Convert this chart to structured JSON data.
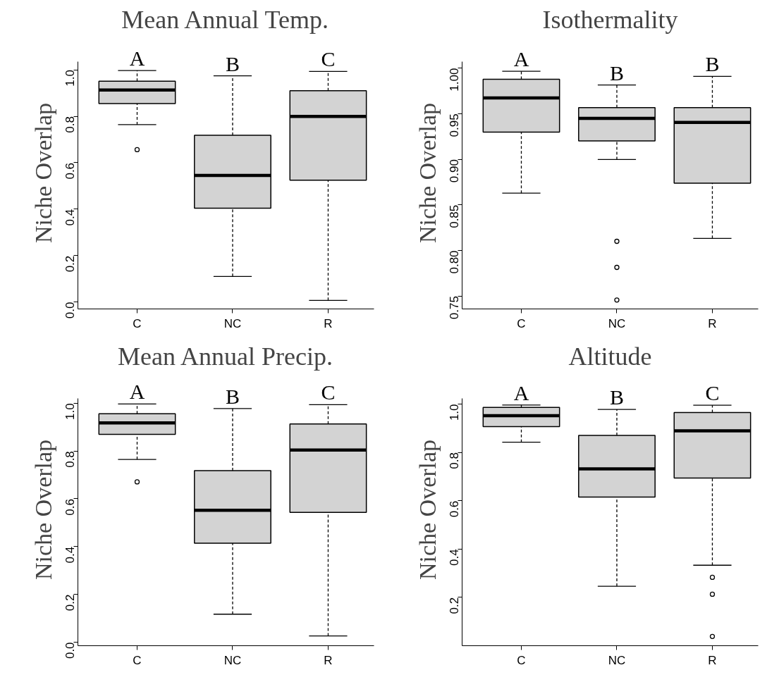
{
  "chart_data": [
    {
      "type": "box",
      "title": "Mean Annual Temp.",
      "ylabel": "Niche Overlap",
      "categories": [
        "C",
        "NC",
        "R"
      ],
      "color": "#d3d3d3",
      "ylim": [
        -0.03,
        1.035
      ],
      "yticks": [
        {
          "value": 0,
          "label": "0.0"
        },
        0.2,
        0.4,
        0.6,
        0.8,
        {
          "value": 1,
          "label": "1.0"
        }
      ],
      "grid": false,
      "boxes": [
        {
          "low": 0.764,
          "q1": 0.855,
          "median": 0.913,
          "q3": 0.951,
          "high": 0.997,
          "outliers": [
            0.656
          ]
        },
        {
          "low": 0.11,
          "q1": 0.404,
          "median": 0.545,
          "q3": 0.718,
          "high": 0.974
        },
        {
          "low": 0.007,
          "q1": 0.525,
          "median": 0.799,
          "q3": 0.91,
          "high": 0.993
        }
      ],
      "annotations": [
        {
          "text": "A",
          "x": "C",
          "y": 0.997
        },
        {
          "text": "B",
          "x": "NC",
          "y": 0.974
        },
        {
          "text": "C",
          "x": "R",
          "y": 0.993
        }
      ]
    },
    {
      "type": "box",
      "title": "Isothermality",
      "ylabel": "Niche Overlap",
      "categories": [
        "C",
        "NC",
        "R"
      ],
      "color": "#d3d3d3",
      "ylim": [
        0.7358,
        1.007
      ],
      "yticks": [
        0.75,
        {
          "value": 0.8,
          "label": "0.80"
        },
        0.85,
        {
          "value": 0.9,
          "label": "0.90"
        },
        0.95,
        {
          "value": 1,
          "label": "1.00"
        }
      ],
      "grid": false,
      "boxes": [
        {
          "low": 0.8628,
          "q1": 0.9297,
          "median": 0.9673,
          "q3": 0.9877,
          "high": 0.9965
        },
        {
          "low": 0.8997,
          "q1": 0.9201,
          "median": 0.9449,
          "q3": 0.9566,
          "high": 0.9815,
          "outliers": [
            0.81,
            0.7814,
            0.7456
          ]
        },
        {
          "low": 0.8132,
          "q1": 0.8737,
          "median": 0.9405,
          "q3": 0.9566,
          "high": 0.991
        }
      ],
      "annotations": [
        {
          "text": "A",
          "x": "C",
          "y": 0.9965
        },
        {
          "text": "B",
          "x": "NC",
          "y": 0.9815
        },
        {
          "text": "B",
          "x": "R",
          "y": 0.991
        }
      ]
    },
    {
      "type": "box",
      "title": "Mean Annual Precip.",
      "ylabel": "Niche Overlap",
      "categories": [
        "C",
        "NC",
        "R"
      ],
      "color": "#d3d3d3",
      "ylim": [
        -0.015,
        1.02
      ],
      "yticks": [
        {
          "value": 0,
          "label": "0.0"
        },
        0.2,
        0.4,
        0.6,
        0.8,
        {
          "value": 1,
          "label": "1.0"
        }
      ],
      "grid": false,
      "boxes": [
        {
          "low": 0.765,
          "q1": 0.87,
          "median": 0.918,
          "q3": 0.956,
          "high": 0.997,
          "outliers": [
            0.671
          ]
        },
        {
          "low": 0.117,
          "q1": 0.414,
          "median": 0.552,
          "q3": 0.718,
          "high": 0.978
        },
        {
          "low": 0.026,
          "q1": 0.543,
          "median": 0.804,
          "q3": 0.913,
          "high": 0.994
        }
      ],
      "annotations": [
        {
          "text": "A",
          "x": "C",
          "y": 0.997
        },
        {
          "text": "B",
          "x": "NC",
          "y": 0.978
        },
        {
          "text": "C",
          "x": "R",
          "y": 0.994
        }
      ]
    },
    {
      "type": "box",
      "title": "Altitude",
      "ylabel": "Niche Overlap",
      "categories": [
        "C",
        "NC",
        "R"
      ],
      "color": "#d3d3d3",
      "ylim": [
        0.0,
        1.023
      ],
      "yticks": [
        0.2,
        0.4,
        0.6,
        0.8,
        {
          "value": 1,
          "label": "1.0"
        }
      ],
      "grid": false,
      "boxes": [
        {
          "low": 0.842,
          "q1": 0.907,
          "median": 0.952,
          "q3": 0.986,
          "high": 0.996
        },
        {
          "low": 0.246,
          "q1": 0.615,
          "median": 0.732,
          "q3": 0.87,
          "high": 0.978
        },
        {
          "low": 0.333,
          "q1": 0.694,
          "median": 0.889,
          "q3": 0.965,
          "high": 0.995,
          "outliers": [
            0.283,
            0.213,
            0.0385
          ]
        }
      ],
      "annotations": [
        {
          "text": "A",
          "x": "C",
          "y": 0.996
        },
        {
          "text": "B",
          "x": "NC",
          "y": 0.978
        },
        {
          "text": "C",
          "x": "R",
          "y": 0.995
        }
      ]
    }
  ]
}
